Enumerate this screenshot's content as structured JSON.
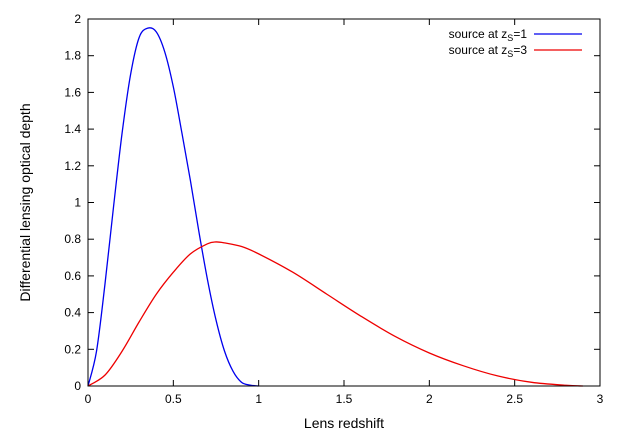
{
  "chart_data": {
    "type": "line",
    "xlabel": "Lens redshift",
    "ylabel": "Differential lensing optical depth",
    "xlim": [
      0,
      3
    ],
    "ylim": [
      0,
      2
    ],
    "xticks": [
      "0",
      "0.5",
      "1",
      "1.5",
      "2",
      "2.5",
      "3"
    ],
    "yticks": [
      "0",
      "0.2",
      "0.4",
      "0.6",
      "0.8",
      "1",
      "1.2",
      "1.4",
      "1.6",
      "1.8",
      "2"
    ],
    "grid": false,
    "legend_position": "top-right",
    "series": [
      {
        "legend": {
          "prefix": "source at z",
          "subscript": "S",
          "suffix": "=1"
        },
        "color": "#0000ee",
        "x": [
          0,
          0.05,
          0.1,
          0.15,
          0.2,
          0.25,
          0.3,
          0.35,
          0.4,
          0.45,
          0.5,
          0.55,
          0.6,
          0.65,
          0.7,
          0.75,
          0.8,
          0.85,
          0.9,
          0.95,
          1.0
        ],
        "y": [
          0,
          0.19,
          0.56,
          0.98,
          1.38,
          1.7,
          1.9,
          1.95,
          1.93,
          1.82,
          1.63,
          1.38,
          1.12,
          0.84,
          0.58,
          0.36,
          0.19,
          0.08,
          0.02,
          0.005,
          0
        ]
      },
      {
        "legend": {
          "prefix": "source at z",
          "subscript": "S",
          "suffix": "=3"
        },
        "color": "#ee0000",
        "x": [
          0,
          0.1,
          0.2,
          0.3,
          0.4,
          0.5,
          0.6,
          0.7,
          0.75,
          0.8,
          0.9,
          1.0,
          1.2,
          1.4,
          1.6,
          1.8,
          2.0,
          2.2,
          2.4,
          2.6,
          2.8,
          2.9
        ],
        "y": [
          0,
          0.06,
          0.19,
          0.35,
          0.5,
          0.62,
          0.72,
          0.775,
          0.785,
          0.78,
          0.76,
          0.72,
          0.62,
          0.5,
          0.38,
          0.27,
          0.18,
          0.11,
          0.055,
          0.02,
          0.004,
          0
        ]
      }
    ]
  }
}
